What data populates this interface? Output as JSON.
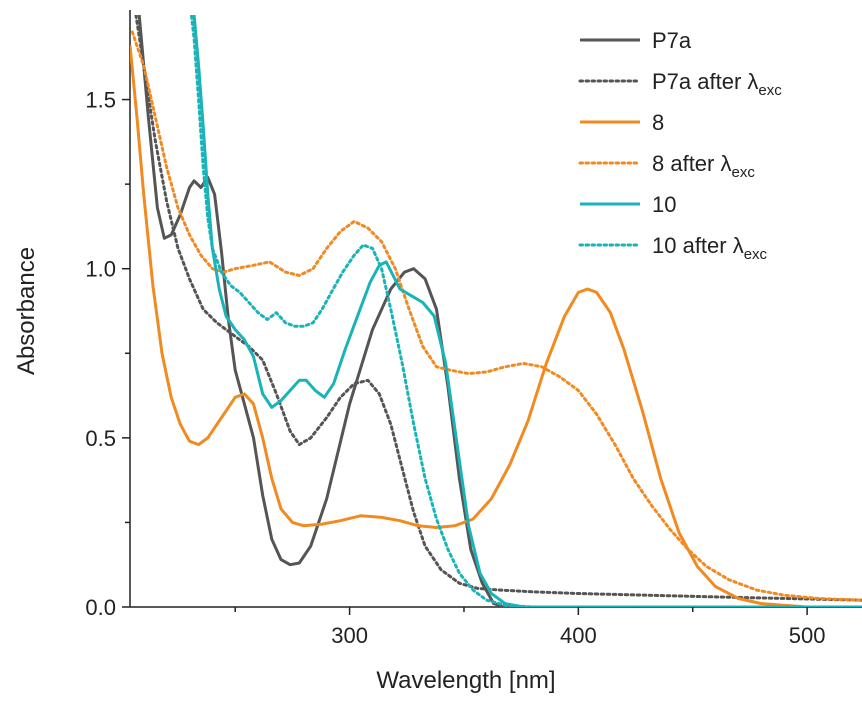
{
  "chart_data": {
    "type": "line",
    "xlabel": "Wavelength [nm]",
    "ylabel": "Absorbance",
    "xlim": [
      204,
      524
    ],
    "ylim": [
      0,
      1.75
    ],
    "xticks": [
      300,
      400,
      500
    ],
    "xtick_labels": [
      "300",
      "400",
      "500"
    ],
    "yticks": [
      0.0,
      0.5,
      1.0,
      1.5
    ],
    "ytick_labels": [
      "0.0",
      "0.5",
      "1.0",
      "1.5"
    ],
    "grid": false,
    "legend_position": "top-right",
    "legend_sub": "exc",
    "series": [
      {
        "name": "P7a",
        "legend_main": "P7a",
        "color": "#555555",
        "dash": "solid",
        "points": [
          [
            205,
            1.9
          ],
          [
            208,
            1.75
          ],
          [
            212,
            1.45
          ],
          [
            216,
            1.18
          ],
          [
            219,
            1.09
          ],
          [
            222,
            1.1
          ],
          [
            226,
            1.16
          ],
          [
            230,
            1.24
          ],
          [
            232,
            1.26
          ],
          [
            235,
            1.24
          ],
          [
            238,
            1.27
          ],
          [
            241,
            1.22
          ],
          [
            244,
            1.05
          ],
          [
            247,
            0.85
          ],
          [
            250,
            0.7
          ],
          [
            254,
            0.6
          ],
          [
            258,
            0.5
          ],
          [
            262,
            0.33
          ],
          [
            266,
            0.2
          ],
          [
            270,
            0.14
          ],
          [
            274,
            0.125
          ],
          [
            278,
            0.13
          ],
          [
            283,
            0.18
          ],
          [
            290,
            0.32
          ],
          [
            300,
            0.6
          ],
          [
            310,
            0.82
          ],
          [
            318,
            0.94
          ],
          [
            324,
            0.99
          ],
          [
            328,
            1.0
          ],
          [
            333,
            0.97
          ],
          [
            338,
            0.88
          ],
          [
            343,
            0.65
          ],
          [
            348,
            0.38
          ],
          [
            353,
            0.17
          ],
          [
            358,
            0.07
          ],
          [
            363,
            0.01
          ],
          [
            368,
            0.0
          ],
          [
            524,
            0.0
          ]
        ]
      },
      {
        "name": "P7a after λexc",
        "legend_main": "P7a after λ",
        "color": "#555555",
        "dash": "dotted",
        "points": [
          [
            205,
            1.82
          ],
          [
            210,
            1.6
          ],
          [
            215,
            1.38
          ],
          [
            220,
            1.2
          ],
          [
            225,
            1.06
          ],
          [
            230,
            0.97
          ],
          [
            236,
            0.88
          ],
          [
            242,
            0.84
          ],
          [
            250,
            0.8
          ],
          [
            256,
            0.77
          ],
          [
            262,
            0.73
          ],
          [
            268,
            0.63
          ],
          [
            274,
            0.52
          ],
          [
            278,
            0.48
          ],
          [
            283,
            0.5
          ],
          [
            290,
            0.56
          ],
          [
            296,
            0.62
          ],
          [
            302,
            0.66
          ],
          [
            308,
            0.67
          ],
          [
            313,
            0.63
          ],
          [
            318,
            0.54
          ],
          [
            323,
            0.41
          ],
          [
            328,
            0.28
          ],
          [
            333,
            0.18
          ],
          [
            340,
            0.11
          ],
          [
            348,
            0.07
          ],
          [
            356,
            0.055
          ],
          [
            366,
            0.05
          ],
          [
            380,
            0.045
          ],
          [
            400,
            0.04
          ],
          [
            430,
            0.035
          ],
          [
            460,
            0.03
          ],
          [
            524,
            0.02
          ]
        ]
      },
      {
        "name": "8",
        "legend_main": "8",
        "color": "#F08A21",
        "dash": "solid",
        "points": [
          [
            204,
            1.66
          ],
          [
            207,
            1.45
          ],
          [
            210,
            1.22
          ],
          [
            214,
            0.95
          ],
          [
            218,
            0.75
          ],
          [
            222,
            0.62
          ],
          [
            226,
            0.54
          ],
          [
            230,
            0.49
          ],
          [
            234,
            0.48
          ],
          [
            238,
            0.5
          ],
          [
            242,
            0.54
          ],
          [
            246,
            0.58
          ],
          [
            250,
            0.62
          ],
          [
            254,
            0.63
          ],
          [
            258,
            0.6
          ],
          [
            262,
            0.5
          ],
          [
            266,
            0.38
          ],
          [
            270,
            0.29
          ],
          [
            275,
            0.25
          ],
          [
            280,
            0.24
          ],
          [
            288,
            0.245
          ],
          [
            296,
            0.255
          ],
          [
            305,
            0.27
          ],
          [
            314,
            0.265
          ],
          [
            322,
            0.255
          ],
          [
            330,
            0.24
          ],
          [
            338,
            0.235
          ],
          [
            346,
            0.24
          ],
          [
            354,
            0.26
          ],
          [
            362,
            0.32
          ],
          [
            370,
            0.42
          ],
          [
            378,
            0.55
          ],
          [
            386,
            0.72
          ],
          [
            394,
            0.86
          ],
          [
            400,
            0.93
          ],
          [
            404,
            0.94
          ],
          [
            408,
            0.93
          ],
          [
            414,
            0.87
          ],
          [
            420,
            0.76
          ],
          [
            428,
            0.58
          ],
          [
            436,
            0.38
          ],
          [
            444,
            0.22
          ],
          [
            452,
            0.12
          ],
          [
            460,
            0.06
          ],
          [
            470,
            0.025
          ],
          [
            480,
            0.01
          ],
          [
            500,
            0.0
          ],
          [
            524,
            0.0
          ]
        ]
      },
      {
        "name": "8 after λexc",
        "legend_main": "8 after λ",
        "color": "#F08A21",
        "dash": "dotted",
        "points": [
          [
            205,
            1.7
          ],
          [
            210,
            1.6
          ],
          [
            215,
            1.45
          ],
          [
            220,
            1.3
          ],
          [
            225,
            1.18
          ],
          [
            230,
            1.1
          ],
          [
            235,
            1.04
          ],
          [
            240,
            1.0
          ],
          [
            245,
            0.99
          ],
          [
            250,
            1.0
          ],
          [
            258,
            1.01
          ],
          [
            265,
            1.02
          ],
          [
            272,
            0.99
          ],
          [
            278,
            0.98
          ],
          [
            284,
            1.0
          ],
          [
            290,
            1.06
          ],
          [
            296,
            1.11
          ],
          [
            302,
            1.14
          ],
          [
            308,
            1.12
          ],
          [
            314,
            1.08
          ],
          [
            320,
            1.0
          ],
          [
            326,
            0.88
          ],
          [
            332,
            0.77
          ],
          [
            338,
            0.71
          ],
          [
            344,
            0.7
          ],
          [
            352,
            0.69
          ],
          [
            360,
            0.695
          ],
          [
            368,
            0.71
          ],
          [
            376,
            0.72
          ],
          [
            384,
            0.71
          ],
          [
            392,
            0.68
          ],
          [
            400,
            0.64
          ],
          [
            408,
            0.57
          ],
          [
            416,
            0.48
          ],
          [
            424,
            0.38
          ],
          [
            432,
            0.3
          ],
          [
            440,
            0.23
          ],
          [
            448,
            0.17
          ],
          [
            456,
            0.12
          ],
          [
            466,
            0.08
          ],
          [
            478,
            0.05
          ],
          [
            490,
            0.035
          ],
          [
            505,
            0.025
          ],
          [
            524,
            0.02
          ]
        ]
      },
      {
        "name": "10",
        "legend_main": "10",
        "color": "#1AB3B8",
        "dash": "solid",
        "points": [
          [
            230,
            1.85
          ],
          [
            232,
            1.75
          ],
          [
            234,
            1.6
          ],
          [
            236,
            1.42
          ],
          [
            238,
            1.22
          ],
          [
            240,
            1.06
          ],
          [
            243,
            0.94
          ],
          [
            246,
            0.86
          ],
          [
            250,
            0.82
          ],
          [
            254,
            0.79
          ],
          [
            258,
            0.74
          ],
          [
            262,
            0.63
          ],
          [
            266,
            0.59
          ],
          [
            270,
            0.61
          ],
          [
            274,
            0.64
          ],
          [
            278,
            0.67
          ],
          [
            281,
            0.67
          ],
          [
            285,
            0.64
          ],
          [
            289,
            0.62
          ],
          [
            293,
            0.66
          ],
          [
            298,
            0.76
          ],
          [
            304,
            0.87
          ],
          [
            309,
            0.96
          ],
          [
            313,
            1.01
          ],
          [
            316,
            1.02
          ],
          [
            319,
            0.98
          ],
          [
            322,
            0.94
          ],
          [
            327,
            0.92
          ],
          [
            332,
            0.9
          ],
          [
            337,
            0.86
          ],
          [
            342,
            0.72
          ],
          [
            347,
            0.48
          ],
          [
            352,
            0.24
          ],
          [
            357,
            0.1
          ],
          [
            362,
            0.04
          ],
          [
            368,
            0.01
          ],
          [
            376,
            0.0
          ],
          [
            524,
            0.0
          ]
        ]
      },
      {
        "name": "10 after λexc",
        "legend_main": "10 after λ",
        "color": "#1AB3B8",
        "dash": "dotted",
        "points": [
          [
            230,
            1.8
          ],
          [
            232,
            1.68
          ],
          [
            234,
            1.5
          ],
          [
            236,
            1.3
          ],
          [
            238,
            1.15
          ],
          [
            240,
            1.06
          ],
          [
            244,
            0.99
          ],
          [
            248,
            0.95
          ],
          [
            252,
            0.93
          ],
          [
            256,
            0.9
          ],
          [
            260,
            0.87
          ],
          [
            264,
            0.85
          ],
          [
            268,
            0.87
          ],
          [
            272,
            0.84
          ],
          [
            276,
            0.83
          ],
          [
            280,
            0.83
          ],
          [
            284,
            0.84
          ],
          [
            288,
            0.88
          ],
          [
            292,
            0.93
          ],
          [
            297,
            0.99
          ],
          [
            302,
            1.04
          ],
          [
            306,
            1.07
          ],
          [
            310,
            1.06
          ],
          [
            314,
            1.0
          ],
          [
            318,
            0.88
          ],
          [
            323,
            0.72
          ],
          [
            328,
            0.54
          ],
          [
            333,
            0.38
          ],
          [
            338,
            0.26
          ],
          [
            343,
            0.17
          ],
          [
            348,
            0.1
          ],
          [
            354,
            0.05
          ],
          [
            360,
            0.02
          ],
          [
            368,
            0.005
          ],
          [
            380,
            0.0
          ],
          [
            524,
            0.0
          ]
        ]
      }
    ]
  }
}
